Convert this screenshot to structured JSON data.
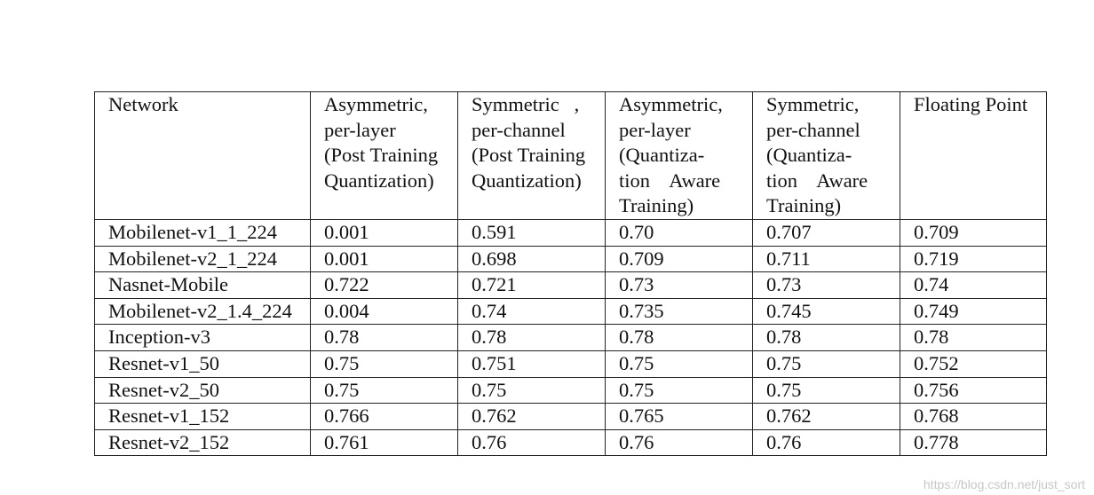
{
  "table": {
    "columns": [
      {
        "lines": [
          "Network"
        ]
      },
      {
        "lines": [
          "Asymmetric,",
          "per-layer",
          "(Post Training",
          "Quantization)"
        ]
      },
      {
        "lines": [
          "Symmetric   ,",
          "per-channel",
          "(Post Training",
          "Quantization)"
        ]
      },
      {
        "lines": [
          "Asymmetric,",
          "per-layer",
          "(Quantiza-",
          "tion    Aware",
          "Training)"
        ]
      },
      {
        "lines": [
          "Symmetric,",
          "per-channel",
          "(Quantiza-",
          "tion    Aware",
          "Training)"
        ]
      },
      {
        "lines": [
          "Floating Point"
        ]
      }
    ],
    "rows": [
      [
        "Mobilenet-v1_1_224",
        "0.001",
        "0.591",
        "0.70",
        "0.707",
        "0.709"
      ],
      [
        "Mobilenet-v2_1_224",
        "0.001",
        "0.698",
        "0.709",
        "0.711",
        "0.719"
      ],
      [
        "Nasnet-Mobile",
        "0.722",
        "0.721",
        "0.73",
        "0.73",
        "0.74"
      ],
      [
        "Mobilenet-v2_1.4_224",
        "0.004",
        "0.74",
        "0.735",
        "0.745",
        "0.749"
      ],
      [
        "Inception-v3",
        "0.78",
        "0.78",
        "0.78",
        "0.78",
        "0.78"
      ],
      [
        "Resnet-v1_50",
        "0.75",
        "0.751",
        "0.75",
        "0.75",
        "0.752"
      ],
      [
        "Resnet-v2_50",
        "0.75",
        "0.75",
        "0.75",
        "0.75",
        "0.756"
      ],
      [
        "Resnet-v1_152",
        "0.766",
        "0.762",
        "0.765",
        "0.762",
        "0.768"
      ],
      [
        "Resnet-v2_152",
        "0.761",
        "0.76",
        "0.76",
        "0.76",
        "0.778"
      ]
    ]
  },
  "watermark": "https://blog.csdn.net/just_sort"
}
